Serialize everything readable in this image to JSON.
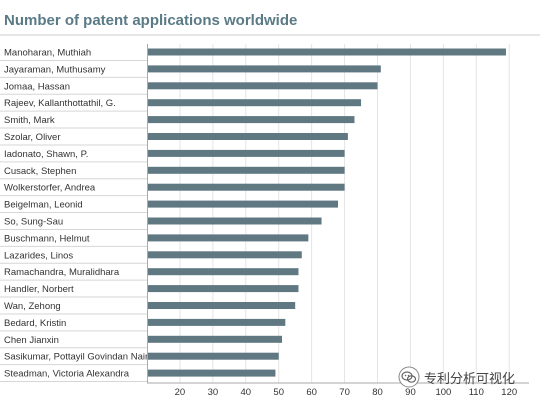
{
  "chart_data": {
    "type": "bar",
    "orientation": "horizontal",
    "title": "Number of patent applications worldwide",
    "xlabel": "",
    "ylabel": "",
    "xlim": [
      10,
      126
    ],
    "xticks": [
      20,
      30,
      40,
      50,
      60,
      70,
      80,
      90,
      100,
      110,
      120
    ],
    "grid": true,
    "bar_color": "#5f7882",
    "categories": [
      "Manoharan, Muthiah",
      "Jayaraman, Muthusamy",
      "Jomaa, Hassan",
      "Rajeev, Kallanthottathil, G.",
      "Smith, Mark",
      "Szolar, Oliver",
      "Iadonato, Shawn, P.",
      "Cusack, Stephen",
      "Wolkerstorfer, Andrea",
      "Beigelman, Leonid",
      "So, Sung-Sau",
      "Buschmann, Helmut",
      "Lazarides, Linos",
      "Ramachandra, Muralidhara",
      "Handler, Norbert",
      "Wan, Zehong",
      "Bedard, Kristin",
      "Chen Jianxin",
      "Sasikumar, Pottayil Govindan Nair",
      "Steadman, Victoria Alexandra"
    ],
    "values": [
      119,
      81,
      80,
      75,
      73,
      71,
      70,
      70,
      70,
      68,
      63,
      59,
      57,
      56,
      56,
      55,
      52,
      51,
      50,
      49
    ]
  },
  "watermark": {
    "text": "专利分析可视化",
    "icon": "wechat-icon"
  }
}
